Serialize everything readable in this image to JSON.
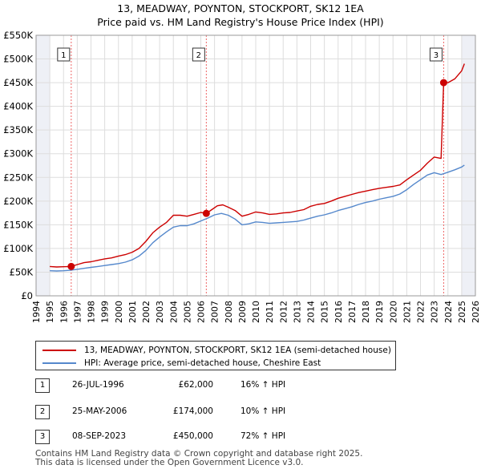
{
  "chart_data": {
    "type": "line",
    "title": "13, MEADWAY, POYNTON, STOCKPORT, SK12 1EA",
    "subtitle": "Price paid vs. HM Land Registry's House Price Index (HPI)",
    "xlim": [
      1994,
      2026
    ],
    "ylim": [
      0,
      550000
    ],
    "x_ticks": [
      1994,
      1995,
      1996,
      1997,
      1998,
      1999,
      2000,
      2001,
      2002,
      2003,
      2004,
      2005,
      2006,
      2007,
      2008,
      2009,
      2010,
      2011,
      2012,
      2013,
      2014,
      2015,
      2016,
      2017,
      2018,
      2019,
      2020,
      2021,
      2022,
      2023,
      2024,
      2025,
      2026
    ],
    "y_ticks": [
      0,
      50000,
      100000,
      150000,
      200000,
      250000,
      300000,
      350000,
      400000,
      450000,
      500000,
      550000
    ],
    "y_tick_labels": [
      "£0",
      "£50K",
      "£100K",
      "£150K",
      "£200K",
      "£250K",
      "£300K",
      "£350K",
      "£400K",
      "£450K",
      "£500K",
      "£550K"
    ],
    "shaded_before": 1995.0,
    "shaded_after": 2025.0,
    "series": [
      {
        "name": "13, MEADWAY, POYNTON, STOCKPORT, SK12 1EA (semi-detached house)",
        "color": "#cc0000",
        "x": [
          1995.0,
          1995.5,
          1996.0,
          1996.56,
          1997.0,
          1997.5,
          1998.0,
          1998.5,
          1999.0,
          1999.5,
          2000.0,
          2000.5,
          2001.0,
          2001.5,
          2002.0,
          2002.5,
          2003.0,
          2003.5,
          2004.0,
          2004.5,
          2005.0,
          2005.5,
          2006.0,
          2006.4,
          2006.8,
          2007.2,
          2007.6,
          2008.0,
          2008.5,
          2009.0,
          2009.5,
          2010.0,
          2010.5,
          2011.0,
          2011.5,
          2012.0,
          2012.5,
          2013.0,
          2013.5,
          2014.0,
          2014.5,
          2015.0,
          2015.5,
          2016.0,
          2016.5,
          2017.0,
          2017.5,
          2018.0,
          2018.5,
          2019.0,
          2019.5,
          2020.0,
          2020.5,
          2021.0,
          2021.5,
          2022.0,
          2022.5,
          2023.0,
          2023.5,
          2023.69,
          2024.0,
          2024.5,
          2025.0,
          2025.2
        ],
        "values": [
          62000,
          61000,
          61500,
          62000,
          66000,
          70000,
          72000,
          75000,
          78000,
          80000,
          84000,
          87000,
          92000,
          100000,
          115000,
          133000,
          145000,
          155000,
          170000,
          170000,
          168000,
          172000,
          176000,
          174000,
          182000,
          190000,
          192000,
          187000,
          180000,
          168000,
          172000,
          177000,
          175000,
          172000,
          173000,
          175000,
          176000,
          179000,
          182000,
          189000,
          193000,
          195000,
          200000,
          206000,
          210000,
          214000,
          218000,
          221000,
          224000,
          227000,
          229000,
          231000,
          234000,
          245000,
          255000,
          265000,
          280000,
          293000,
          290000,
          450000,
          450000,
          458000,
          475000,
          490000
        ]
      },
      {
        "name": "HPI: Average price, semi-detached house, Cheshire East",
        "color": "#5588cc",
        "x": [
          1995.0,
          1995.5,
          1996.0,
          1996.5,
          1997.0,
          1997.5,
          1998.0,
          1998.5,
          1999.0,
          1999.5,
          2000.0,
          2000.5,
          2001.0,
          2001.5,
          2002.0,
          2002.5,
          2003.0,
          2003.5,
          2004.0,
          2004.5,
          2005.0,
          2005.5,
          2006.0,
          2006.5,
          2007.0,
          2007.5,
          2008.0,
          2008.5,
          2009.0,
          2009.5,
          2010.0,
          2010.5,
          2011.0,
          2011.5,
          2012.0,
          2012.5,
          2013.0,
          2013.5,
          2014.0,
          2014.5,
          2015.0,
          2015.5,
          2016.0,
          2016.5,
          2017.0,
          2017.5,
          2018.0,
          2018.5,
          2019.0,
          2019.5,
          2020.0,
          2020.5,
          2021.0,
          2021.5,
          2022.0,
          2022.5,
          2023.0,
          2023.5,
          2024.0,
          2024.5,
          2025.0,
          2025.2
        ],
        "values": [
          53000,
          52500,
          53000,
          54000,
          56000,
          58000,
          60000,
          62000,
          64000,
          66000,
          68000,
          71000,
          76000,
          84000,
          96000,
          112000,
          124000,
          135000,
          145000,
          148000,
          148000,
          152000,
          158000,
          164000,
          171000,
          174000,
          170000,
          162000,
          150000,
          152000,
          156000,
          155000,
          153000,
          154000,
          155000,
          156000,
          157000,
          160000,
          164000,
          168000,
          171000,
          175000,
          180000,
          184000,
          188000,
          193000,
          197000,
          200000,
          204000,
          207000,
          210000,
          215000,
          224000,
          235000,
          245000,
          255000,
          260000,
          256000,
          261000,
          266000,
          272000,
          276000
        ]
      }
    ],
    "markers": [
      {
        "label": "1",
        "x": 1996.56,
        "y": 62000
      },
      {
        "label": "2",
        "x": 2006.4,
        "y": 174000
      },
      {
        "label": "3",
        "x": 2023.69,
        "y": 450000
      }
    ]
  },
  "legend": {
    "property_label": "13, MEADWAY, POYNTON, STOCKPORT, SK12 1EA (semi-detached house)",
    "hpi_label": "HPI: Average price, semi-detached house, Cheshire East"
  },
  "sales": [
    {
      "number": "1",
      "date": "26-JUL-1996",
      "price": "£62,000",
      "hpi": "16% ↑ HPI"
    },
    {
      "number": "2",
      "date": "25-MAY-2006",
      "price": "£174,000",
      "hpi": "10% ↑ HPI"
    },
    {
      "number": "3",
      "date": "08-SEP-2023",
      "price": "£450,000",
      "hpi": "72% ↑ HPI"
    }
  ],
  "footer": {
    "line1": "Contains HM Land Registry data © Crown copyright and database right 2025.",
    "line2": "This data is licensed under the Open Government Licence v3.0."
  }
}
